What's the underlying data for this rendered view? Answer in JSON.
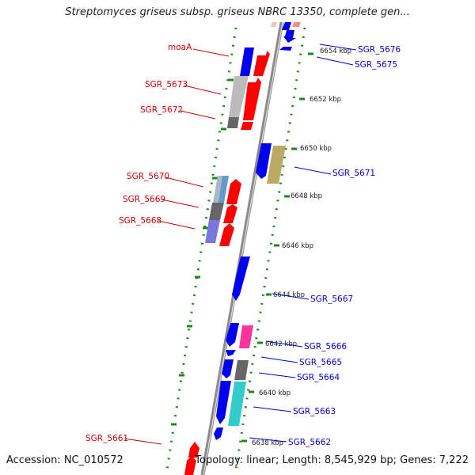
{
  "title": "Streptomyces griseus subsp. griseus NBRC 13350, complete gen...",
  "footer": {
    "accession": "Accession: NC_010572",
    "topology": "Topology: linear; Length: 8,545,929 bp; Genes: 7,222"
  },
  "colors": {
    "forward_label": "#cc0000",
    "reverse_label": "#0000cc",
    "red_gene": "#ff0000",
    "blue_gene": "#0000ee",
    "gray_gene": "#bbbbbb",
    "dark_gray_gene": "#666666",
    "light_blue_gene": "#6699cc",
    "purple_gene": "#7777dd",
    "olive_gene": "#bbaa66",
    "magenta_gene": "#ff3399",
    "cyan_gene": "#33cccc",
    "axis_dots": "#1a8a1a"
  },
  "ticks": [
    {
      "label": "6654 kbp",
      "kbp": 6654
    },
    {
      "label": "6652 kbp",
      "kbp": 6652
    },
    {
      "label": "6650 kbp",
      "kbp": 6650
    },
    {
      "label": "6648 kbp",
      "kbp": 6648
    },
    {
      "label": "6646 kbp",
      "kbp": 6646
    },
    {
      "label": "6644 kbp",
      "kbp": 6644
    },
    {
      "label": "6642 kbp",
      "kbp": 6642
    },
    {
      "label": "6640 kbp",
      "kbp": 6640
    },
    {
      "label": "6638 kbp",
      "kbp": 6638
    }
  ],
  "forward_labels": [
    {
      "name": "moaA"
    },
    {
      "name": "SGR_5673"
    },
    {
      "name": "SGR_5672"
    },
    {
      "name": "SGR_5670"
    },
    {
      "name": "SGR_5669"
    },
    {
      "name": "SGR_5668"
    },
    {
      "name": "SGR_5661"
    }
  ],
  "reverse_labels": [
    {
      "name": "SGR_5676"
    },
    {
      "name": "SGR_5675"
    },
    {
      "name": "SGR_5671"
    },
    {
      "name": "SGR_5667"
    },
    {
      "name": "SGR_5666"
    },
    {
      "name": "SGR_5665"
    },
    {
      "name": "SGR_5664"
    },
    {
      "name": "SGR_5663"
    },
    {
      "name": "SGR_5662"
    }
  ]
}
